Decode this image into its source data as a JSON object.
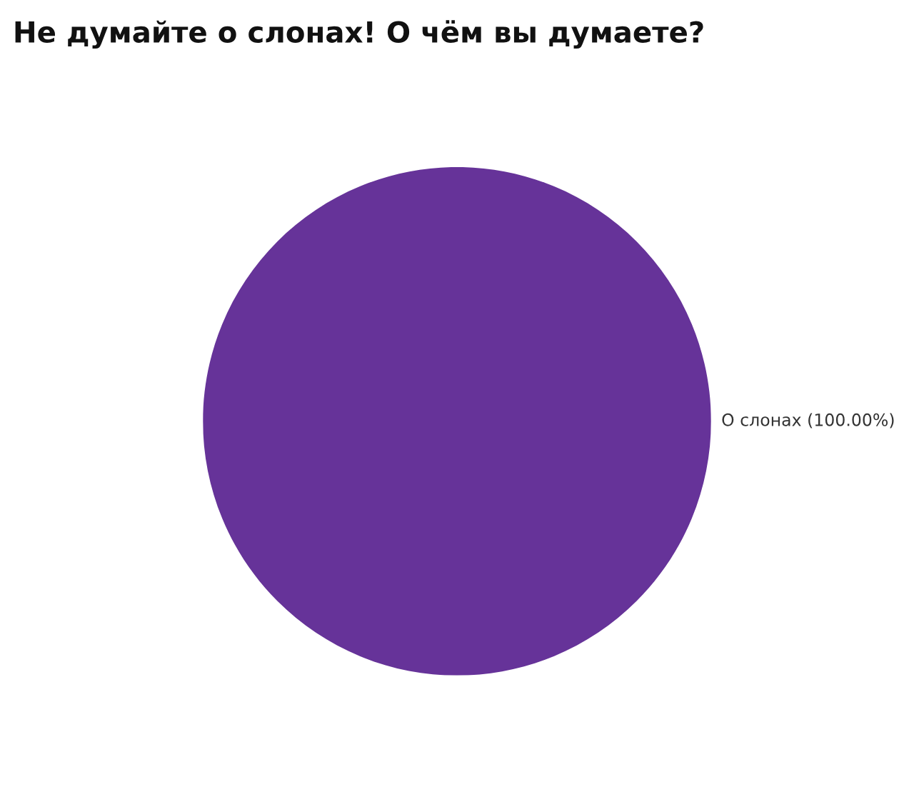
{
  "chart_data": {
    "type": "pie",
    "title": "Не думайте о слонах! О чём вы думаете?",
    "categories": [
      "О слонах"
    ],
    "values": [
      100
    ],
    "value_labels": [
      "(100.00%)"
    ],
    "colors": [
      "#663399"
    ]
  }
}
